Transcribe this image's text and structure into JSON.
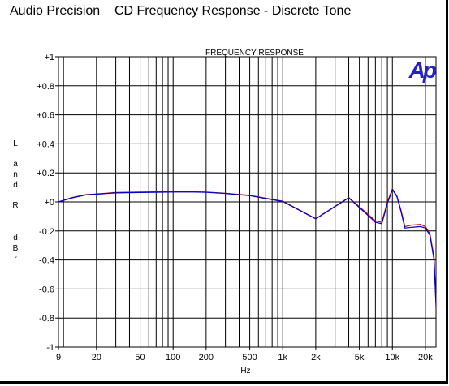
{
  "header": {
    "brand": "Audio Precision",
    "title": "CD Frequency Response - Discrete Tone"
  },
  "logo": {
    "text": "Ap",
    "color": "#2323c8"
  },
  "chart_data": {
    "type": "line",
    "title": "FREQUENCY RESPONSE",
    "xlabel": "Hz",
    "ylabel": [
      "L",
      "a",
      "n",
      "d",
      "R",
      "d",
      "B",
      "r"
    ],
    "x_scale": "log",
    "xlim": [
      9,
      25000
    ],
    "ylim": [
      -1,
      1
    ],
    "grid": true,
    "x_ticks": [
      {
        "value": 9,
        "label": "9"
      },
      {
        "value": 20,
        "label": "20"
      },
      {
        "value": 50,
        "label": "50"
      },
      {
        "value": 100,
        "label": "100"
      },
      {
        "value": 200,
        "label": "200"
      },
      {
        "value": 500,
        "label": "500"
      },
      {
        "value": 1000,
        "label": "1k"
      },
      {
        "value": 2000,
        "label": "2k"
      },
      {
        "value": 5000,
        "label": "5k"
      },
      {
        "value": 10000,
        "label": "10k"
      },
      {
        "value": 20000,
        "label": "20k"
      }
    ],
    "y_ticks": [
      {
        "value": 1,
        "label": "+1"
      },
      {
        "value": 0.8,
        "label": "+0.8"
      },
      {
        "value": 0.6,
        "label": "+0.6"
      },
      {
        "value": 0.4,
        "label": "+0.4"
      },
      {
        "value": 0.2,
        "label": "+0.2"
      },
      {
        "value": 0,
        "label": "+0"
      },
      {
        "value": -0.2,
        "label": "-0.2"
      },
      {
        "value": -0.4,
        "label": "-0.4"
      },
      {
        "value": -0.6,
        "label": "-0.6"
      },
      {
        "value": -0.8,
        "label": "-0.8"
      },
      {
        "value": -1,
        "label": "-1"
      }
    ],
    "series": [
      {
        "color": "#cc0000",
        "x": [
          9,
          12,
          16,
          20,
          30,
          50,
          80,
          100,
          150,
          200,
          300,
          500,
          700,
          1000,
          2000,
          4000,
          7000,
          8000,
          9000,
          10000,
          11000,
          12000,
          13000,
          15000,
          18000,
          20000,
          22000,
          24000,
          25000
        ],
        "y": [
          0.0,
          0.03,
          0.05,
          0.055,
          0.065,
          0.068,
          0.07,
          0.07,
          0.07,
          0.068,
          0.06,
          0.045,
          0.025,
          0.005,
          -0.115,
          0.03,
          -0.13,
          -0.14,
          0.0,
          0.09,
          0.04,
          -0.06,
          -0.17,
          -0.16,
          -0.155,
          -0.17,
          -0.22,
          -0.38,
          -0.7
        ]
      },
      {
        "color": "#0000cc",
        "x": [
          9,
          12,
          16,
          20,
          30,
          50,
          80,
          100,
          150,
          200,
          300,
          500,
          700,
          1000,
          2000,
          4000,
          7000,
          8000,
          9000,
          10000,
          11000,
          12000,
          13000,
          15000,
          18000,
          20000,
          22000,
          24000,
          25000
        ],
        "y": [
          0.0,
          0.028,
          0.048,
          0.053,
          0.062,
          0.065,
          0.067,
          0.068,
          0.068,
          0.066,
          0.058,
          0.043,
          0.023,
          0.003,
          -0.117,
          0.028,
          -0.14,
          -0.15,
          -0.01,
          0.085,
          0.035,
          -0.07,
          -0.18,
          -0.175,
          -0.17,
          -0.18,
          -0.23,
          -0.4,
          -0.72
        ]
      }
    ]
  }
}
